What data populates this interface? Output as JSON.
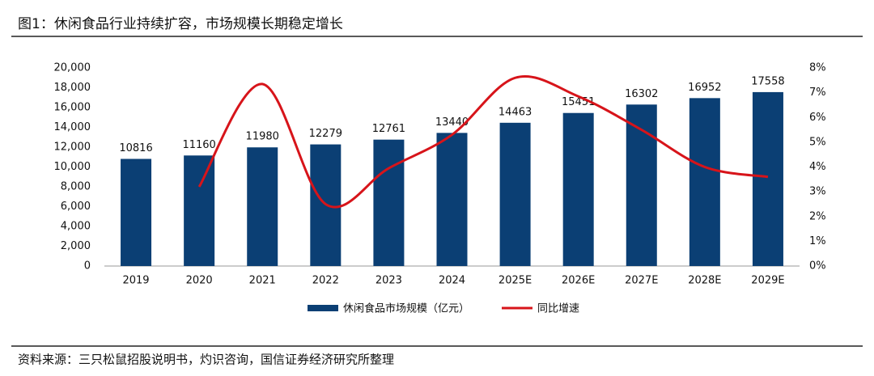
{
  "chart_data": {
    "type": "bar_line",
    "title": "图1：休闲食品行业持续扩容，市场规模长期稳定增长",
    "source": "资料来源：三只松鼠招股说明书，灼识咨询，国信证券经济研究所整理",
    "categories": [
      "2019",
      "2020",
      "2021",
      "2022",
      "2023",
      "2024",
      "2025E",
      "2026E",
      "2027E",
      "2028E",
      "2029E"
    ],
    "series": [
      {
        "name": "休闲食品市场规模（亿元）",
        "type": "bar",
        "color": "#0b3f74",
        "values": [
          10816,
          11160,
          11980,
          12279,
          12761,
          13440,
          14463,
          15451,
          16302,
          16952,
          17558
        ]
      },
      {
        "name": "同比增速",
        "type": "line",
        "axis": "y2",
        "color": "#d7141a",
        "values": [
          null,
          3.2,
          7.35,
          2.5,
          3.95,
          5.3,
          7.6,
          6.85,
          5.5,
          4.0,
          3.6
        ]
      }
    ],
    "ylim": [
      0,
      20000
    ],
    "yticks": [
      0,
      {
        "value": 2000,
        "label": "2,000"
      },
      {
        "value": 4000,
        "label": "4,000"
      },
      {
        "value": 6000,
        "label": "6,000"
      },
      {
        "value": 8000,
        "label": "8,000"
      },
      {
        "value": 10000,
        "label": "10,000"
      },
      {
        "value": 12000,
        "label": "12,000"
      },
      {
        "value": 14000,
        "label": "14,000"
      },
      {
        "value": 16000,
        "label": "16,000"
      },
      {
        "value": 18000,
        "label": "18,000"
      },
      {
        "value": 20000,
        "label": "20,000"
      }
    ],
    "y2lim": [
      0,
      8
    ],
    "y2ticks": [
      {
        "value": 0,
        "label": "0%"
      },
      {
        "value": 1,
        "label": "1%"
      },
      {
        "value": 2,
        "label": "2%"
      },
      {
        "value": 3,
        "label": "3%"
      },
      {
        "value": 4,
        "label": "4%"
      },
      {
        "value": 5,
        "label": "5%"
      },
      {
        "value": 6,
        "label": "6%"
      },
      {
        "value": 7,
        "label": "7%"
      },
      {
        "value": 8,
        "label": "8%"
      }
    ],
    "grid": false
  }
}
